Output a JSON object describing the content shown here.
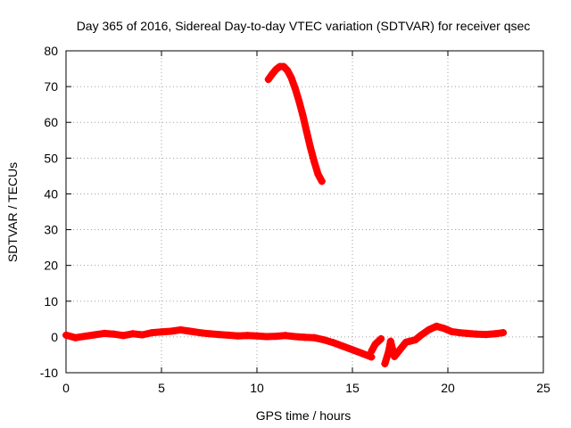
{
  "chart_data": {
    "type": "scatter",
    "title": "Day 365 of 2016, Sidereal Day-to-day VTEC variation (SDTVAR) for receiver qsec",
    "xlabel": "GPS time / hours",
    "ylabel": "SDTVAR / TECUs",
    "xlim": [
      0,
      25
    ],
    "ylim": [
      -10,
      80
    ],
    "xticks": [
      0,
      5,
      10,
      15,
      20,
      25
    ],
    "yticks": [
      -10,
      0,
      10,
      20,
      30,
      40,
      50,
      60,
      70,
      80
    ],
    "grid": true,
    "marker": "+",
    "series": [
      {
        "name": "SDTVAR",
        "color": "#ff0000",
        "points": [
          [
            0.0,
            0.5
          ],
          [
            0.5,
            -0.2
          ],
          [
            1.0,
            0.2
          ],
          [
            1.5,
            0.6
          ],
          [
            2.0,
            1.0
          ],
          [
            2.5,
            0.8
          ],
          [
            3.0,
            0.4
          ],
          [
            3.5,
            0.9
          ],
          [
            4.0,
            0.6
          ],
          [
            4.5,
            1.2
          ],
          [
            5.0,
            1.4
          ],
          [
            5.5,
            1.6
          ],
          [
            6.0,
            2.0
          ],
          [
            6.5,
            1.6
          ],
          [
            7.0,
            1.2
          ],
          [
            7.5,
            0.9
          ],
          [
            8.0,
            0.7
          ],
          [
            8.5,
            0.5
          ],
          [
            9.0,
            0.3
          ],
          [
            9.5,
            0.4
          ],
          [
            10.0,
            0.3
          ],
          [
            10.5,
            0.1
          ],
          [
            11.0,
            0.2
          ],
          [
            11.5,
            0.4
          ],
          [
            12.0,
            0.1
          ],
          [
            12.5,
            -0.1
          ],
          [
            13.0,
            -0.2
          ],
          [
            13.5,
            -0.8
          ],
          [
            14.0,
            -1.6
          ],
          [
            14.5,
            -2.6
          ],
          [
            15.0,
            -3.6
          ],
          [
            15.5,
            -4.6
          ],
          [
            16.0,
            -5.6
          ],
          [
            10.6,
            72.0
          ],
          [
            10.8,
            73.5
          ],
          [
            11.0,
            74.8
          ],
          [
            11.2,
            75.6
          ],
          [
            11.4,
            75.6
          ],
          [
            11.6,
            74.5
          ],
          [
            11.8,
            72.5
          ],
          [
            12.0,
            69.5
          ],
          [
            12.2,
            66.0
          ],
          [
            12.4,
            62.0
          ],
          [
            12.6,
            57.5
          ],
          [
            12.8,
            53.0
          ],
          [
            13.0,
            49.0
          ],
          [
            13.2,
            45.5
          ],
          [
            13.4,
            43.5
          ],
          [
            16.0,
            -4.0
          ],
          [
            16.2,
            -2.0
          ],
          [
            16.5,
            -0.5
          ],
          [
            16.7,
            -7.5
          ],
          [
            16.9,
            -4.0
          ],
          [
            17.0,
            -1.2
          ],
          [
            17.2,
            -5.5
          ],
          [
            17.5,
            -3.5
          ],
          [
            17.8,
            -1.5
          ],
          [
            18.0,
            -1.2
          ],
          [
            18.3,
            -0.8
          ],
          [
            18.6,
            0.5
          ],
          [
            19.0,
            2.0
          ],
          [
            19.4,
            3.0
          ],
          [
            19.8,
            2.4
          ],
          [
            20.2,
            1.5
          ],
          [
            20.6,
            1.2
          ],
          [
            21.0,
            1.0
          ],
          [
            21.5,
            0.8
          ],
          [
            22.0,
            0.7
          ],
          [
            22.5,
            0.9
          ],
          [
            22.9,
            1.2
          ]
        ]
      }
    ]
  }
}
